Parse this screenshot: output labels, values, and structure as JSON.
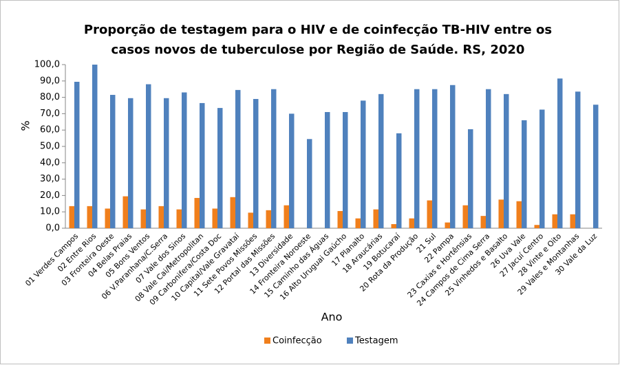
{
  "chart_data": {
    "type": "bar",
    "title": [
      "Proporção de testagem para o HIV e de coinfecção TB-HIV  entre os",
      "casos novos de tuberculose por Região de Saúde. RS,  2020"
    ],
    "x_label": "Ano",
    "y_label": "%",
    "categories": [
      "01 Verdes Campos",
      "02 Entre Rios",
      "03 Fronteira Oeste",
      "04 Belas Praias",
      "05 Bons Ventos",
      "06 V.Paranhana/C.Serra",
      "07 Vale dos Sinos",
      "08 Vale Cai/Metropolitan",
      "09 Carbonifera/Costa Doc",
      "10 Capital/Vale Gravataí",
      "11 Sete Povos Missões",
      "12 Portal das Missões",
      "13 Diversidade",
      "14 Fronteira Noroeste",
      "15 Caminho das Águas",
      "16 Alto Uruguai Gaúcho",
      "17 Planalto",
      "18 Araucárias",
      "19 Botucaraí",
      "20 Rota da Produção",
      "21 Sul",
      "22 Pampa",
      "23 Caxias e Hortênsias",
      "24 Campos de Cima Serra",
      "25 Vinhedos e Basalto",
      "26 Uva Vale",
      "27 Jacuí Centro",
      "28 Vinte e Oito",
      "29 Vales e Montanhas",
      "30 Vale da Luz"
    ],
    "series": [
      {
        "name": "Coinfecção",
        "color": "#f07f1c",
        "values": [
          13.5,
          13.5,
          12,
          19.5,
          11.5,
          13.5,
          11.5,
          18.5,
          12,
          19,
          9.5,
          11,
          14,
          0,
          0,
          10.5,
          6,
          11.5,
          2.5,
          6,
          17,
          3.5,
          14,
          7.5,
          17.5,
          16.5,
          2,
          8.5,
          8.5,
          0
        ]
      },
      {
        "name": "Testagem",
        "color": "#4f81bd",
        "values": [
          89.5,
          100,
          81.5,
          79.5,
          88,
          79.5,
          83,
          76.5,
          73.5,
          84.5,
          79,
          85,
          70,
          54.5,
          71,
          71,
          78,
          82,
          58,
          85,
          85,
          87.5,
          60.5,
          85,
          82,
          66,
          72.5,
          91.5,
          83.5,
          75.5
        ]
      }
    ],
    "ylim": [
      0,
      100
    ],
    "yticks": [
      {
        "value": 0,
        "label": "0,0"
      },
      {
        "value": 10,
        "label": "10,0"
      },
      {
        "value": 20,
        "label": "20,0"
      },
      {
        "value": 30,
        "label": "30,0"
      },
      {
        "value": 40,
        "label": "40,0"
      },
      {
        "value": 50,
        "label": "50,0"
      },
      {
        "value": 60,
        "label": "60,0"
      },
      {
        "value": 70,
        "label": "70,0"
      },
      {
        "value": 80,
        "label": "80,0"
      },
      {
        "value": 90,
        "label": "90,0"
      },
      {
        "value": 100,
        "label": "100,0"
      }
    ],
    "grid": false,
    "legend": "bottom"
  }
}
